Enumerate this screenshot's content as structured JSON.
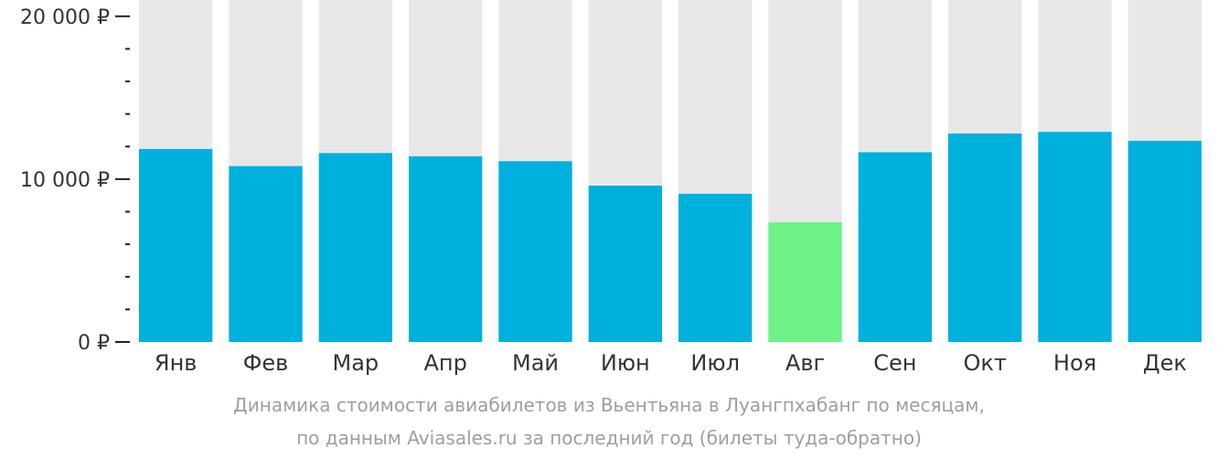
{
  "chart_data": {
    "type": "bar",
    "categories": [
      "Янв",
      "Фев",
      "Мар",
      "Апр",
      "Май",
      "Июн",
      "Июл",
      "Авг",
      "Сен",
      "Окт",
      "Ноя",
      "Дек"
    ],
    "values": [
      11850,
      10800,
      11600,
      11400,
      11100,
      9600,
      9100,
      7350,
      11650,
      12800,
      12900,
      12350
    ],
    "ylim": [
      0,
      21000
    ],
    "y_ticks": [
      {
        "value": 0,
        "label": "0 ₽"
      },
      {
        "value": 10000,
        "label": "10 000 ₽"
      },
      {
        "value": 20000,
        "label": "20 000 ₽"
      }
    ],
    "y_minor_step": 2000,
    "highlight_index": 7,
    "grid": false,
    "colors": {
      "bar": "#00b0dd",
      "highlight": "#6cf285",
      "background_bar": "#e8e8e8",
      "axis": "#222222"
    }
  },
  "caption": {
    "line1": "Динамика стоимости авиабилетов из Вьентьяна в Луангпхабанг по месяцам,",
    "line2": "по данным Aviasales.ru за последний год (билеты туда-обратно)"
  }
}
